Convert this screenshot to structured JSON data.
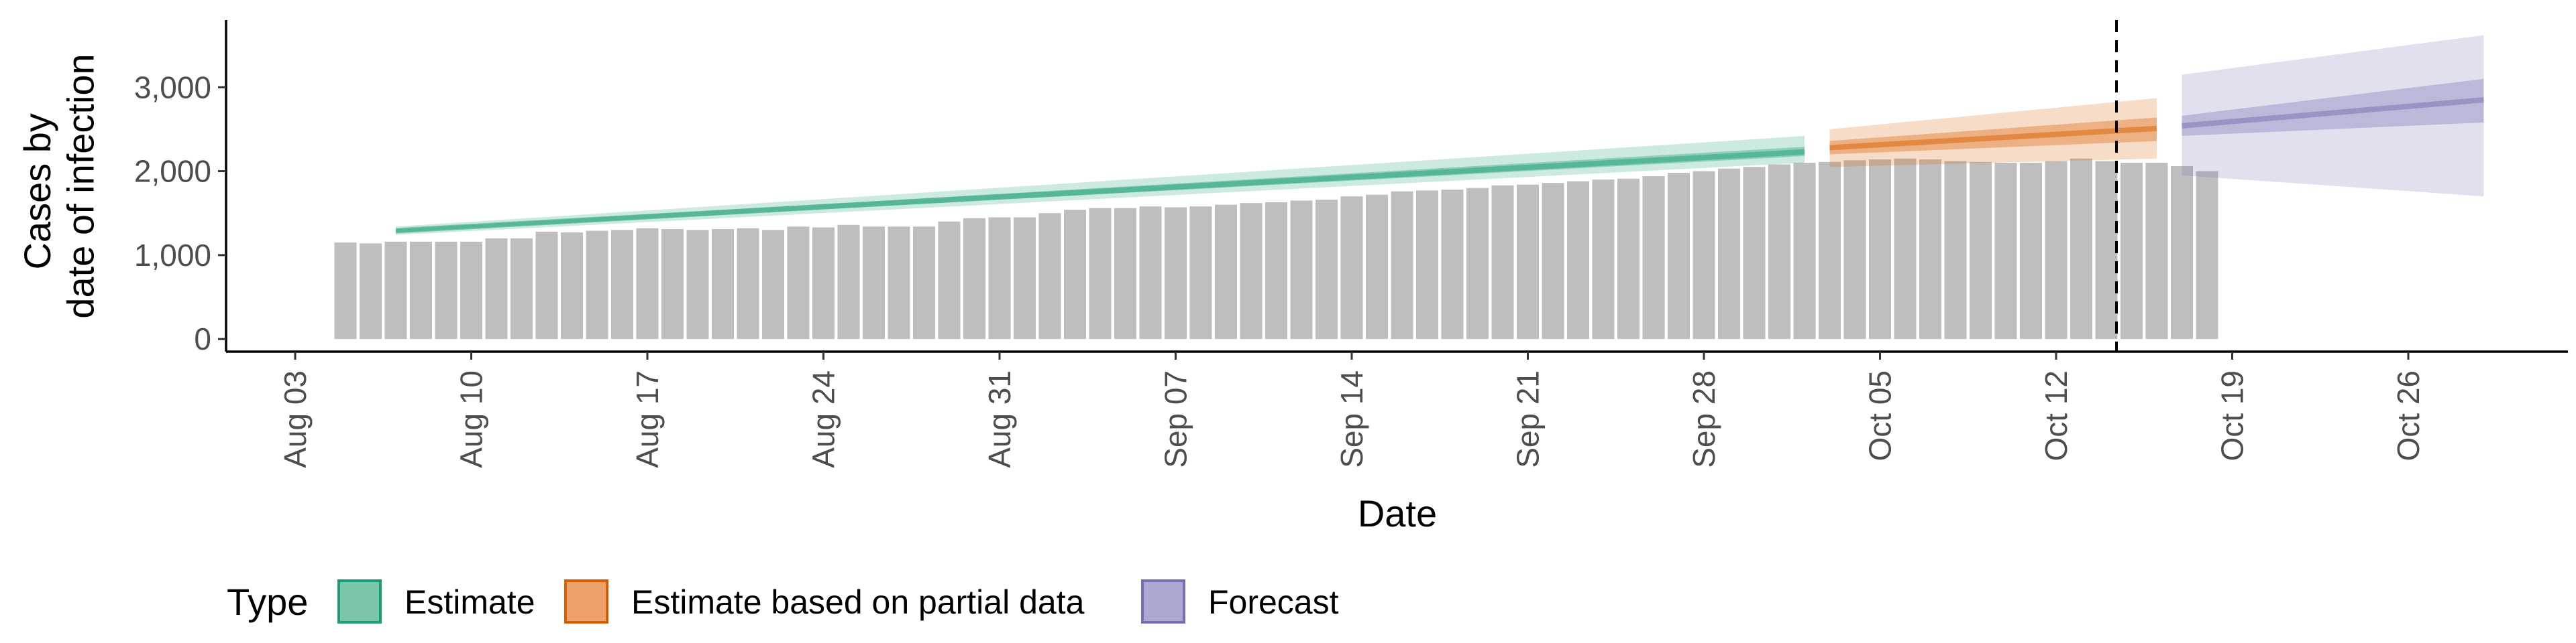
{
  "chart_data": {
    "type": "bar+ribbon",
    "xlabel": "Date",
    "ylabel_lines": [
      "Cases by",
      "date of infection"
    ],
    "ylim": [
      -150,
      3800
    ],
    "y_ticks": [
      0,
      1000,
      2000,
      3000
    ],
    "y_tick_labels": [
      "0",
      "1,000",
      "2,000",
      "3,000"
    ],
    "x_start_date": "2020-08-03",
    "x_ticks": [
      "2020-08-03",
      "2020-08-10",
      "2020-08-17",
      "2020-08-24",
      "2020-08-31",
      "2020-09-07",
      "2020-09-14",
      "2020-09-21",
      "2020-09-28",
      "2020-10-05",
      "2020-10-12",
      "2020-10-19",
      "2020-10-26"
    ],
    "x_tick_labels": [
      "Aug 03",
      "Aug 10",
      "Aug 17",
      "Aug 24",
      "Aug 31",
      "Sep 07",
      "Sep 14",
      "Sep 21",
      "Sep 28",
      "Oct 05",
      "Oct 12",
      "Oct 19",
      "Oct 26"
    ],
    "cutoff_date": "2020-10-14",
    "bars": {
      "start_date": "2020-08-05",
      "values": [
        1150,
        1140,
        1160,
        1160,
        1160,
        1160,
        1200,
        1200,
        1280,
        1270,
        1290,
        1300,
        1320,
        1310,
        1300,
        1310,
        1320,
        1300,
        1340,
        1330,
        1360,
        1340,
        1340,
        1340,
        1400,
        1440,
        1450,
        1450,
        1500,
        1540,
        1560,
        1560,
        1580,
        1570,
        1580,
        1600,
        1620,
        1630,
        1650,
        1660,
        1700,
        1720,
        1760,
        1770,
        1780,
        1800,
        1830,
        1840,
        1860,
        1880,
        1900,
        1910,
        1940,
        1980,
        2000,
        2030,
        2050,
        2080,
        2100,
        2110,
        2130,
        2140,
        2150,
        2140,
        2120,
        2110,
        2100,
        2100,
        2120,
        2150,
        2120,
        2100,
        2100,
        2060,
        2000
      ]
    },
    "series": [
      {
        "name": "Estimate",
        "color": "#1b9e77",
        "start_date": "2020-08-07",
        "end_date": "2020-10-02",
        "median": [
          1290,
          2230
        ],
        "inner": [
          [
            1270,
            1310
          ],
          [
            2180,
            2290
          ]
        ],
        "outer": [
          [
            1240,
            1340
          ],
          [
            2100,
            2420
          ]
        ]
      },
      {
        "name": "Estimate based on partial data",
        "color": "#d95f02",
        "start_date": "2020-10-03",
        "end_date": "2020-10-16",
        "median": [
          2280,
          2510
        ],
        "inner": [
          [
            2200,
            2360
          ],
          [
            2360,
            2640
          ]
        ],
        "outer": [
          [
            2050,
            2500
          ],
          [
            2150,
            2870
          ]
        ]
      },
      {
        "name": "Forecast",
        "color": "#7570b3",
        "start_date": "2020-10-17",
        "end_date": "2020-10-29",
        "median": [
          2540,
          2850
        ],
        "inner": [
          [
            2420,
            2660
          ],
          [
            2580,
            3100
          ]
        ],
        "outer": [
          [
            1950,
            3150
          ],
          [
            1700,
            3620
          ]
        ]
      }
    ],
    "legend": {
      "title": "Type",
      "position": "bottom",
      "items": [
        {
          "label": "Estimate",
          "fill": "#7ac5a8",
          "stroke": "#1b9e77"
        },
        {
          "label": "Estimate based on partial data",
          "fill": "#eca06a",
          "stroke": "#d95f02"
        },
        {
          "label": "Forecast",
          "fill": "#aba8d2",
          "stroke": "#7570b3"
        }
      ]
    },
    "grid": false
  }
}
